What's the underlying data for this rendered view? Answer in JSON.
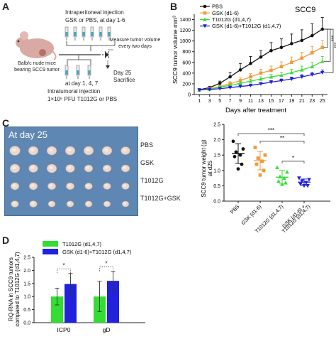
{
  "panels": {
    "A": "A",
    "B": "B",
    "C": "C",
    "D": "D"
  },
  "panel_a": {
    "ip_line1": "Intraperitoneal injection",
    "ip_line2": "GSK or PBS, at day 1-6",
    "mouse_line1": "Balb/c nude mice",
    "mouse_line2": "bearing SCC9 tumor",
    "measure_line1": "Measure tumor volume",
    "measure_line2": "every two days",
    "at_days": "at day 1, 4, 7",
    "it_line1": "Intratumoral injection",
    "it_line2": "1×10⁶ PFU T1012G or PBS",
    "day25": "Day 25",
    "sacrifice": "Sacrifice"
  },
  "panel_c_photo": {
    "title": "At day 25",
    "row_labels": [
      "PBS",
      "GSK",
      "T1012G",
      "T1012G+GSK"
    ]
  },
  "colors": {
    "pbs": "#111111",
    "gsk": "#f39a3c",
    "t1012g": "#3bdc3b",
    "combo": "#2020dd",
    "bar_t": "#33dd33",
    "bar_c": "#2222dd"
  },
  "chart_data": [
    {
      "id": "B",
      "type": "line",
      "title": "SCC9",
      "xlabel": "Days after treatment",
      "ylabel": "SCC9 tumor volume mm³",
      "x": [
        1,
        3,
        5,
        7,
        9,
        11,
        13,
        15,
        17,
        19,
        21,
        23,
        25
      ],
      "xlim": [
        0,
        26
      ],
      "ylim": [
        0,
        1500
      ],
      "yticks": [
        0,
        200,
        400,
        600,
        800,
        1000,
        1200,
        1400
      ],
      "legend_position": "top-left",
      "series": [
        {
          "name": "PBS",
          "color_key": "pbs",
          "marker": "circle",
          "values": [
            90,
            130,
            210,
            330,
            460,
            580,
            700,
            820,
            880,
            950,
            1010,
            1100,
            1220
          ],
          "errors": [
            10,
            20,
            40,
            80,
            120,
            130,
            120,
            150,
            160,
            180,
            200,
            220,
            220
          ]
        },
        {
          "name": "GSK (d1-6)",
          "color_key": "gsk",
          "marker": "square",
          "values": [
            85,
            110,
            150,
            200,
            260,
            330,
            400,
            450,
            520,
            600,
            680,
            780,
            880
          ],
          "errors": [
            10,
            15,
            25,
            40,
            50,
            60,
            70,
            80,
            90,
            100,
            110,
            120,
            130
          ]
        },
        {
          "name": "T1012G (d1,4,7)",
          "color_key": "t1012g",
          "marker": "triangle",
          "values": [
            85,
            100,
            140,
            170,
            210,
            250,
            290,
            330,
            360,
            410,
            460,
            520,
            620
          ],
          "errors": [
            10,
            15,
            20,
            25,
            30,
            35,
            40,
            45,
            50,
            60,
            70,
            80,
            90
          ]
        },
        {
          "name": "GSK (d1-6)+T1012G (d1,4,7)",
          "color_key": "combo",
          "marker": "triangle-down",
          "values": [
            85,
            95,
            110,
            130,
            150,
            170,
            200,
            230,
            260,
            290,
            330,
            370,
            410
          ],
          "errors": [
            8,
            10,
            15,
            15,
            20,
            25,
            25,
            30,
            30,
            35,
            40,
            45,
            50
          ]
        }
      ],
      "annotations": [
        "***",
        "***",
        "***"
      ]
    },
    {
      "id": "C",
      "type": "scatter",
      "ylabel_line1": "SCC9 tumor weight (g)",
      "ylabel_line2": "at d25",
      "ylim": [
        0,
        2.5
      ],
      "yticks": [
        0.0,
        0.5,
        1.0,
        1.5,
        2.0,
        2.5
      ],
      "categories": [
        "PBS",
        "GSK (d1-6)",
        "T1012G (d1,4,7)",
        "GSK (d1-6) + T1012G (d1,4,7)"
      ],
      "groups": [
        {
          "name": "PBS",
          "color_key": "pbs",
          "marker": "circle",
          "mean": 1.55,
          "sd": 0.32,
          "points": [
            1.95,
            1.7,
            1.6,
            1.5,
            1.45,
            1.2,
            1.05
          ]
        },
        {
          "name": "GSK (d1-6)",
          "color_key": "gsk",
          "marker": "square",
          "mean": 1.32,
          "sd": 0.3,
          "points": [
            1.75,
            1.5,
            1.4,
            1.3,
            1.2,
            1.0,
            0.85
          ]
        },
        {
          "name": "T1012G (d1,4,7)",
          "color_key": "t1012g",
          "marker": "triangle",
          "mean": 0.78,
          "sd": 0.22,
          "points": [
            1.1,
            0.95,
            0.8,
            0.75,
            0.65,
            0.6,
            0.55
          ]
        },
        {
          "name": "GSK (d1-6) + T1012G (d1,4,7)",
          "color_key": "combo",
          "marker": "triangle-down",
          "mean": 0.62,
          "sd": 0.1,
          "points": [
            0.75,
            0.7,
            0.65,
            0.6,
            0.55,
            0.5,
            0.5
          ]
        }
      ],
      "brackets": [
        {
          "from": 0,
          "to": 3,
          "label": "***"
        },
        {
          "from": 1,
          "to": 3,
          "label": "**"
        },
        {
          "from": 2,
          "to": 3,
          "label": "*"
        }
      ]
    },
    {
      "id": "D",
      "type": "bar",
      "ylabel_line1": "RQ-RNA in SCC9 tumors",
      "ylabel_line2": "compared to T1012G (d1,4,7)",
      "ylim": [
        0,
        2.5
      ],
      "yticks": [
        0.0,
        0.5,
        1.0,
        1.5,
        2.0,
        2.5
      ],
      "categories": [
        "ICP0",
        "gD"
      ],
      "legend_position": "top-left",
      "series": [
        {
          "name": "T1012G (d1,4,7)",
          "color_key": "bar_t",
          "values": [
            1.0,
            1.0
          ],
          "errors": [
            0.32,
            0.58
          ]
        },
        {
          "name": "GSK (d1-6)+T1012G (d1,4,7)",
          "color_key": "bar_c",
          "values": [
            1.48,
            1.6
          ],
          "errors": [
            0.4,
            0.35
          ]
        }
      ],
      "annotations": [
        "*",
        "*"
      ]
    }
  ]
}
